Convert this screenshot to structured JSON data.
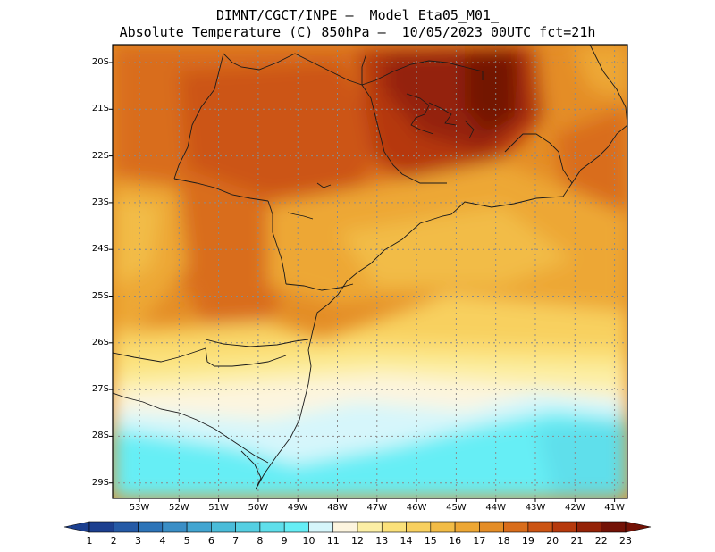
{
  "title": {
    "line1": "DIMNT/CGCT/INPE —  Model Eta05_M01_",
    "line2": "Absolute Temperature (C) 850hPa —  10/05/2023 00UTC fct=21h"
  },
  "map": {
    "lat_labels": [
      "20S",
      "21S",
      "22S",
      "23S",
      "24S",
      "25S",
      "26S",
      "27S",
      "28S",
      "29S"
    ],
    "lon_labels": [
      "53W",
      "52W",
      "51W",
      "50W",
      "49W",
      "48W",
      "47W",
      "46W",
      "45W",
      "44W",
      "43W",
      "42W",
      "41W"
    ]
  },
  "colorbar": {
    "labels": [
      "1",
      "2",
      "3",
      "4",
      "5",
      "6",
      "7",
      "8",
      "9",
      "10",
      "11",
      "12",
      "13",
      "14",
      "15",
      "16",
      "17",
      "18",
      "19",
      "20",
      "21",
      "22",
      "23"
    ],
    "colors": [
      "#1c3f8f",
      "#255aa6",
      "#2d74b8",
      "#3a8ec6",
      "#42a5d1",
      "#4abcd9",
      "#55cfe2",
      "#5fdfeb",
      "#66eef5",
      "#d6f6fb",
      "#fdf5df",
      "#fcefa5",
      "#fbe17a",
      "#f8d05f",
      "#f2bc46",
      "#eda734",
      "#e48d26",
      "#d96d1b",
      "#cc5413",
      "#b6390c",
      "#942207",
      "#731206"
    ]
  }
}
